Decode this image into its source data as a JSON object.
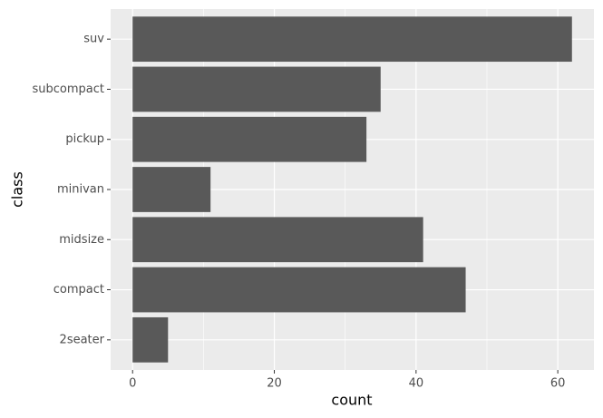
{
  "chart_data": {
    "type": "bar",
    "orientation": "horizontal",
    "x_label": "count",
    "y_label": "class",
    "categories": [
      "2seater",
      "compact",
      "midsize",
      "minivan",
      "pickup",
      "subcompact",
      "suv"
    ],
    "values": [
      5,
      47,
      41,
      11,
      33,
      35,
      62
    ],
    "color": "#595959",
    "xlim": [
      -3.1,
      65.1
    ],
    "xticks": [
      0,
      20,
      40,
      60
    ],
    "minor_xticks": [
      10,
      30,
      50
    ],
    "grid": true
  }
}
